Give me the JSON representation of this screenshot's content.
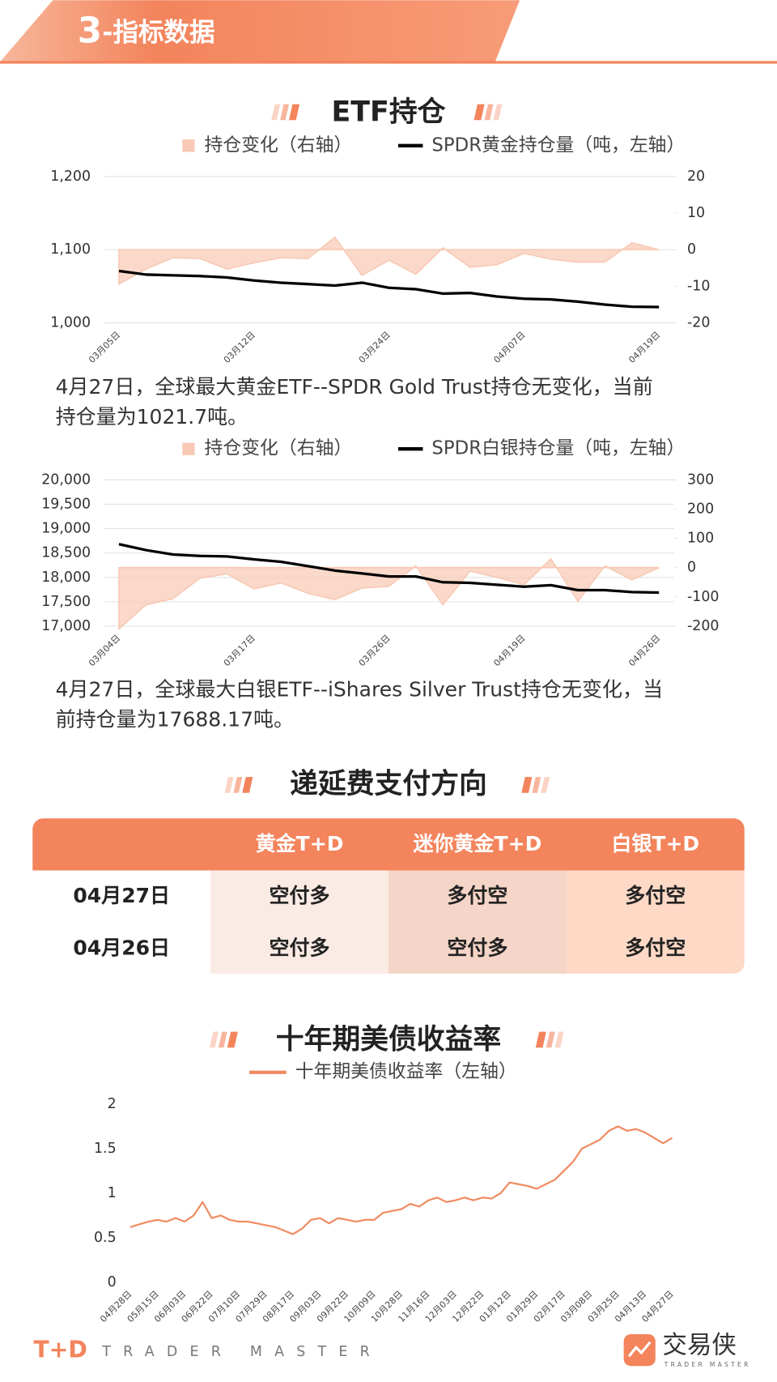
{
  "header": {
    "number": "3",
    "title": "-指标数据"
  },
  "sections": [
    "ETF持仓",
    "递延费支付方向",
    "十年期美债收益率"
  ],
  "chart_data": [
    {
      "type": "line",
      "categories": [
        "03月05日",
        null,
        null,
        null,
        null,
        "03月12日",
        null,
        null,
        null,
        null,
        "03月24日",
        null,
        null,
        null,
        null,
        "04月07日",
        null,
        null,
        null,
        null,
        "04月19日"
      ],
      "series": [
        {
          "name": "持仓变化（右轴）",
          "type": "area",
          "axis": "y2",
          "color": "#f8c9b4",
          "values": [
            -9.4,
            -5.3,
            -2.2,
            -2.4,
            -5.3,
            -3.6,
            -2.2,
            -2.4,
            3.4,
            -7,
            -2.9,
            -6.7,
            0.5,
            -4.8,
            -4.1,
            -1,
            -2.6,
            -3.4,
            -3.4,
            1.9,
            0
          ]
        },
        {
          "name": "SPDR黄金持仓量（吨，左轴）",
          "color": "#000000",
          "values": [
            1071,
            1066,
            1065,
            1064,
            1062,
            1058,
            1055,
            1053,
            1051,
            1055,
            1048,
            1046,
            1040,
            1041,
            1036,
            1033,
            1032,
            1029,
            1025,
            1022,
            1021.7
          ]
        }
      ],
      "ylim": [
        1000,
        1200
      ],
      "yticks": [
        {
          "value": 1000,
          "label": "1,000"
        },
        {
          "value": 1100,
          "label": "1,100"
        },
        {
          "value": 1200,
          "label": "1,200"
        }
      ],
      "y2lim": [
        -20,
        20
      ],
      "y2ticks": [
        -20,
        -10,
        0,
        10,
        20
      ],
      "grid": true
    },
    {
      "type": "line",
      "categories": [
        "03月04日",
        null,
        null,
        null,
        null,
        "03月17日",
        null,
        null,
        null,
        null,
        "03月26日",
        null,
        null,
        null,
        null,
        "04月19日",
        null,
        null,
        null,
        null,
        "04月26日"
      ],
      "series": [
        {
          "name": "持仓变化（右轴）",
          "type": "area",
          "axis": "y2",
          "color": "#f8c9b4",
          "values": [
            -209,
            -127,
            -106,
            -36,
            -21,
            -73,
            -52,
            -88,
            -109,
            -70,
            -64,
            6,
            -127,
            -12,
            -33,
            -58,
            30,
            -115,
            6,
            -42,
            0
          ]
        },
        {
          "name": "SPDR白银持仓量（吨，左轴）",
          "color": "#000000",
          "values": [
            18680,
            18560,
            18470,
            18440,
            18430,
            18370,
            18320,
            18230,
            18140,
            18080,
            18020,
            18020,
            17900,
            17890,
            17850,
            17810,
            17840,
            17740,
            17740,
            17700,
            17688.17
          ]
        }
      ],
      "ylim": [
        17000,
        20000
      ],
      "yticks": [
        {
          "value": 17000,
          "label": "17,000"
        },
        {
          "value": 17500,
          "label": "17,500"
        },
        {
          "value": 18000,
          "label": "18,000"
        },
        {
          "value": 18500,
          "label": "18,500"
        },
        {
          "value": 19000,
          "label": "19,000"
        },
        {
          "value": 19500,
          "label": "19,500"
        },
        {
          "value": 20000,
          "label": "20,000"
        }
      ],
      "y2lim": [
        -200,
        300
      ],
      "y2ticks": [
        -200,
        -100,
        0,
        100,
        200,
        300
      ],
      "grid": true
    },
    {
      "type": "line",
      "categories": [
        "04月28日",
        null,
        null,
        "05月15日",
        null,
        null,
        "06月03日",
        null,
        null,
        "06月22日",
        null,
        null,
        "07月10日",
        null,
        null,
        "07月29日",
        null,
        null,
        "08月17日",
        null,
        null,
        "09月03日",
        null,
        null,
        "09月22日",
        null,
        null,
        "10月09日",
        null,
        null,
        "10月28日",
        null,
        null,
        "11月16日",
        null,
        null,
        "12月03日",
        null,
        null,
        "12月22日",
        null,
        null,
        "01月12日",
        null,
        null,
        "01月29日",
        null,
        null,
        "02月17日",
        null,
        null,
        "03月08日",
        null,
        null,
        "03月25日",
        null,
        null,
        "04月13日",
        null,
        null,
        "04月27日"
      ],
      "series": [
        {
          "name": "十年期美债收益率（左轴）",
          "color": "#f08a60",
          "values": [
            0.62,
            0.65,
            0.68,
            0.7,
            0.68,
            0.72,
            0.68,
            0.75,
            0.9,
            0.72,
            0.75,
            0.7,
            0.68,
            0.68,
            0.66,
            0.64,
            0.62,
            0.58,
            0.54,
            0.6,
            0.7,
            0.72,
            0.66,
            0.72,
            0.7,
            0.68,
            0.7,
            0.7,
            0.78,
            0.8,
            0.82,
            0.88,
            0.85,
            0.92,
            0.95,
            0.9,
            0.92,
            0.95,
            0.92,
            0.95,
            0.94,
            1.0,
            1.12,
            1.1,
            1.08,
            1.05,
            1.1,
            1.15,
            1.25,
            1.35,
            1.5,
            1.55,
            1.6,
            1.7,
            1.75,
            1.7,
            1.72,
            1.68,
            1.62,
            1.56,
            1.62
          ]
        }
      ],
      "ylim": [
        0,
        2
      ],
      "yticks": [
        0,
        0.5,
        1,
        1.5,
        2
      ],
      "grid": false
    }
  ],
  "notes": [
    [
      "4月27日，全球最大黄金ETF--SPDR Gold Trust持仓无变化，当前",
      "持仓量为1021.7吨。"
    ],
    [
      "4月27日，全球最大白银ETF--iShares Silver Trust持仓无变化，当",
      "前持仓量为17688.17吨。"
    ]
  ],
  "table": {
    "columns": [
      "黄金T+D",
      "迷你黄金T+D",
      "白银T+D"
    ],
    "rows": [
      {
        "date": "04月27日",
        "cells": [
          "空付多",
          "多付空",
          "多付空"
        ]
      },
      {
        "date": "04月26日",
        "cells": [
          "空付多",
          "空付多",
          "多付空"
        ]
      }
    ]
  },
  "footer": {
    "brand": "T+D",
    "tagline": "TRADER MASTER",
    "logo": "交易侠",
    "logo_sub": "TRADER MASTER"
  }
}
